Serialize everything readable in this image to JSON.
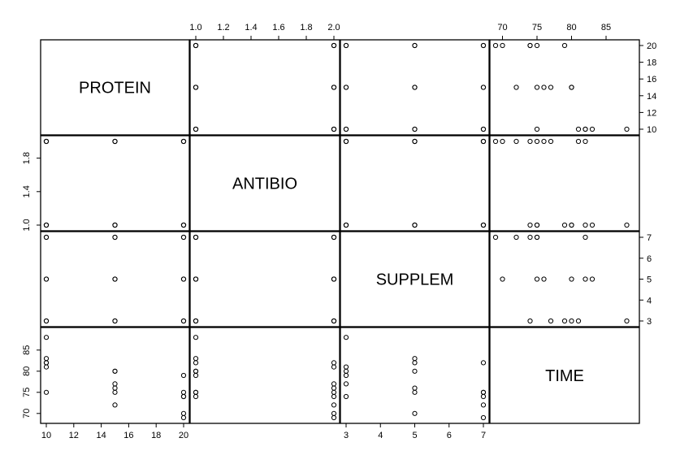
{
  "chart_data": {
    "type": "scatter",
    "variables": [
      "PROTEIN",
      "ANTIBIO",
      "SUPPLEM",
      "TIME"
    ],
    "axes": {
      "PROTEIN": {
        "range": [
          10,
          20
        ],
        "ticks": [
          10,
          12,
          14,
          16,
          18,
          20
        ]
      },
      "ANTIBIO": {
        "range": [
          1,
          2
        ],
        "ticks_top": [
          1.0,
          1.2,
          1.4,
          1.6,
          1.8,
          2.0
        ],
        "ticks_left": [
          1.0,
          1.4,
          1.8
        ]
      },
      "SUPPLEM": {
        "range": [
          3,
          7
        ],
        "ticks": [
          3,
          4,
          5,
          6,
          7
        ]
      },
      "TIME": {
        "range": [
          69,
          89
        ],
        "ticks_top": [
          70,
          75,
          80,
          85
        ],
        "ticks_left": [
          70,
          75,
          80,
          85
        ]
      }
    },
    "grid": false,
    "observations": [
      {
        "PROTEIN": 10,
        "ANTIBIO": 1,
        "SUPPLEM": 3,
        "TIME": 88
      },
      {
        "PROTEIN": 10,
        "ANTIBIO": 1,
        "SUPPLEM": 5,
        "TIME": 83
      },
      {
        "PROTEIN": 10,
        "ANTIBIO": 1,
        "SUPPLEM": 7,
        "TIME": 82
      },
      {
        "PROTEIN": 10,
        "ANTIBIO": 2,
        "SUPPLEM": 3,
        "TIME": 81
      },
      {
        "PROTEIN": 10,
        "ANTIBIO": 2,
        "SUPPLEM": 5,
        "TIME": 82
      },
      {
        "PROTEIN": 10,
        "ANTIBIO": 2,
        "SUPPLEM": 7,
        "TIME": 75
      },
      {
        "PROTEIN": 15,
        "ANTIBIO": 1,
        "SUPPLEM": 3,
        "TIME": 80
      },
      {
        "PROTEIN": 15,
        "ANTIBIO": 1,
        "SUPPLEM": 5,
        "TIME": 80
      },
      {
        "PROTEIN": 15,
        "ANTIBIO": 1,
        "SUPPLEM": 7,
        "TIME": 75
      },
      {
        "PROTEIN": 15,
        "ANTIBIO": 2,
        "SUPPLEM": 3,
        "TIME": 77
      },
      {
        "PROTEIN": 15,
        "ANTIBIO": 2,
        "SUPPLEM": 5,
        "TIME": 76
      },
      {
        "PROTEIN": 15,
        "ANTIBIO": 2,
        "SUPPLEM": 7,
        "TIME": 72
      },
      {
        "PROTEIN": 20,
        "ANTIBIO": 1,
        "SUPPLEM": 3,
        "TIME": 79
      },
      {
        "PROTEIN": 20,
        "ANTIBIO": 1,
        "SUPPLEM": 5,
        "TIME": 75
      },
      {
        "PROTEIN": 20,
        "ANTIBIO": 1,
        "SUPPLEM": 7,
        "TIME": 74
      },
      {
        "PROTEIN": 20,
        "ANTIBIO": 2,
        "SUPPLEM": 3,
        "TIME": 74
      },
      {
        "PROTEIN": 20,
        "ANTIBIO": 2,
        "SUPPLEM": 5,
        "TIME": 70
      },
      {
        "PROTEIN": 20,
        "ANTIBIO": 2,
        "SUPPLEM": 7,
        "TIME": 69
      }
    ]
  }
}
